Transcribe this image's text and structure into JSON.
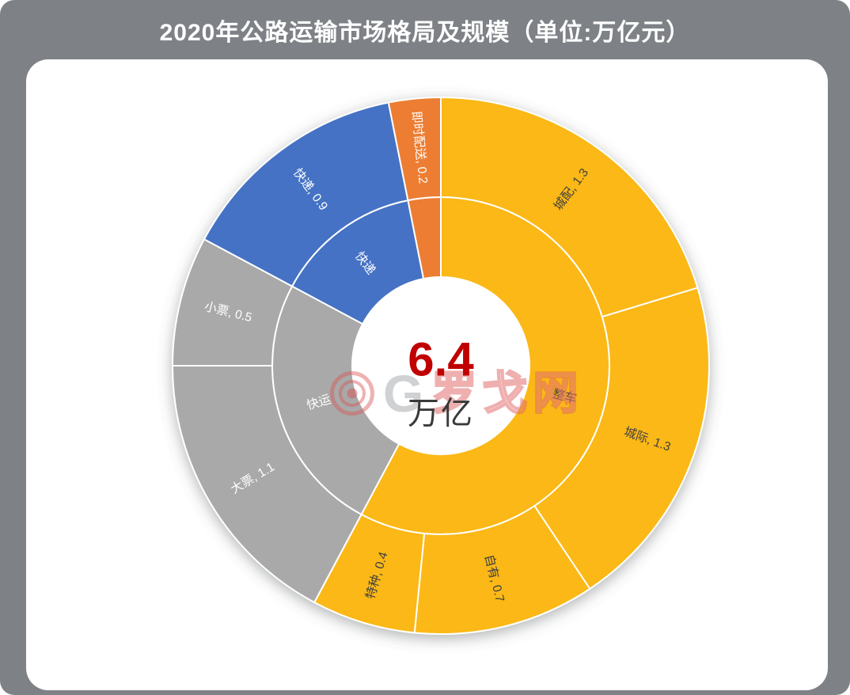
{
  "page": {
    "title": "2020年公路运输市场格局及规模（单位:万亿元）",
    "background_color": "#7E8287",
    "card_color": "#FFFFFF"
  },
  "watermark": {
    "letter": "G",
    "text": "罗戈网",
    "color": "#D95454"
  },
  "chart_data": {
    "type": "sunburst",
    "title": "2020年公路运输市场格局及规模",
    "unit": "万亿元",
    "total": 6.4,
    "direction": "clockwise",
    "start_angle_deg": 0,
    "center_label": {
      "value": "6.4",
      "unit": "万亿",
      "value_color": "#C00000"
    },
    "inner_ring": [
      {
        "label": "整车",
        "value": 3.7,
        "color": "#FBB813",
        "text_color": "#404040",
        "show_label": true
      },
      {
        "label": "快运",
        "value": 1.6,
        "color": "#A9A9A9",
        "text_color": "#FFFFFF",
        "show_label": true
      },
      {
        "label": "快递",
        "value": 0.9,
        "color": "#4472C4",
        "text_color": "#FFFFFF",
        "show_label": true
      },
      {
        "label": "即时配送",
        "value": 0.2,
        "color": "#ED7D31",
        "text_color": "#FFFFFF",
        "show_label": false
      }
    ],
    "outer_ring": [
      {
        "label": "城配",
        "value": 1.3,
        "display": "城配, 1.3",
        "parent": "整车",
        "color": "#FBB813",
        "text_color": "#404040"
      },
      {
        "label": "城际",
        "value": 1.3,
        "display": "城际, 1.3",
        "parent": "整车",
        "color": "#FBB813",
        "text_color": "#404040"
      },
      {
        "label": "自有",
        "value": 0.7,
        "display": "自有, 0.7",
        "parent": "整车",
        "color": "#FBB813",
        "text_color": "#404040"
      },
      {
        "label": "特种",
        "value": 0.4,
        "display": "特种, 0.4",
        "parent": "整车",
        "color": "#FBB813",
        "text_color": "#404040"
      },
      {
        "label": "大票",
        "value": 1.1,
        "display": "大票, 1.1",
        "parent": "快运",
        "color": "#A9A9A9",
        "text_color": "#FFFFFF"
      },
      {
        "label": "小票",
        "value": 0.5,
        "display": "小票, 0.5",
        "parent": "快运",
        "color": "#A9A9A9",
        "text_color": "#FFFFFF"
      },
      {
        "label": "快递",
        "value": 0.9,
        "display": "快递, 0.9",
        "parent": "快递",
        "color": "#4472C4",
        "text_color": "#FFFFFF"
      },
      {
        "label": "即时配送",
        "value": 0.2,
        "display": "即时配送, 0.2",
        "parent": "即时配送",
        "color": "#ED7D31",
        "text_color": "#FFFFFF"
      }
    ]
  }
}
